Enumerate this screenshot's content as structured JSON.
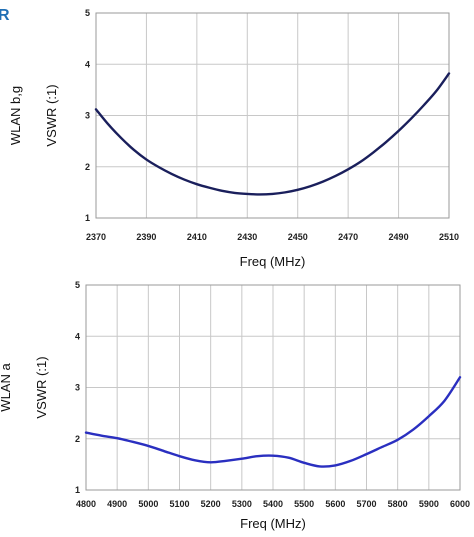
{
  "corner_mark": "R",
  "chart_data": [
    {
      "type": "line",
      "band_label": "WLAN b,g",
      "ylabel": "VSWR (:1)",
      "xlabel": "Freq (MHz)",
      "xlim": [
        2370,
        2510
      ],
      "ylim": [
        1,
        5
      ],
      "x_ticks": [
        "2370",
        "2390",
        "2410",
        "2430",
        "2450",
        "2470",
        "2490",
        "2510"
      ],
      "y_ticks": [
        "1",
        "2",
        "3",
        "4",
        "5"
      ],
      "grid": true,
      "line_color": "#1a1f5c",
      "series": [
        {
          "x": [
            2370,
            2375,
            2380,
            2385,
            2390,
            2395,
            2400,
            2405,
            2410,
            2415,
            2420,
            2425,
            2430,
            2435,
            2440,
            2445,
            2450,
            2455,
            2460,
            2465,
            2470,
            2475,
            2480,
            2485,
            2490,
            2495,
            2500,
            2505,
            2510
          ],
          "y": [
            3.12,
            2.82,
            2.56,
            2.33,
            2.14,
            1.99,
            1.86,
            1.75,
            1.66,
            1.59,
            1.53,
            1.49,
            1.47,
            1.46,
            1.47,
            1.5,
            1.55,
            1.62,
            1.71,
            1.82,
            1.95,
            2.1,
            2.28,
            2.48,
            2.7,
            2.94,
            3.2,
            3.48,
            3.82
          ]
        }
      ]
    },
    {
      "type": "line",
      "band_label": "WLAN a",
      "ylabel": "VSWR (:1)",
      "xlabel": "Freq (MHz)",
      "xlim": [
        4800,
        6000
      ],
      "ylim": [
        1,
        5
      ],
      "x_ticks": [
        "4800",
        "4900",
        "5000",
        "5100",
        "5200",
        "5300",
        "5400",
        "5500",
        "5600",
        "5700",
        "5800",
        "5900",
        "6000"
      ],
      "y_ticks": [
        "1",
        "2",
        "3",
        "4",
        "5"
      ],
      "grid": true,
      "line_color": "#2a2fc0",
      "series": [
        {
          "x": [
            4800,
            4850,
            4900,
            4950,
            5000,
            5050,
            5100,
            5150,
            5200,
            5250,
            5300,
            5350,
            5400,
            5450,
            5500,
            5550,
            5600,
            5650,
            5700,
            5750,
            5800,
            5850,
            5900,
            5950,
            6000
          ],
          "y": [
            2.12,
            2.06,
            2.01,
            1.94,
            1.86,
            1.76,
            1.66,
            1.58,
            1.54,
            1.57,
            1.61,
            1.66,
            1.67,
            1.63,
            1.53,
            1.46,
            1.48,
            1.57,
            1.7,
            1.84,
            1.98,
            2.18,
            2.44,
            2.74,
            3.2
          ]
        }
      ]
    }
  ]
}
